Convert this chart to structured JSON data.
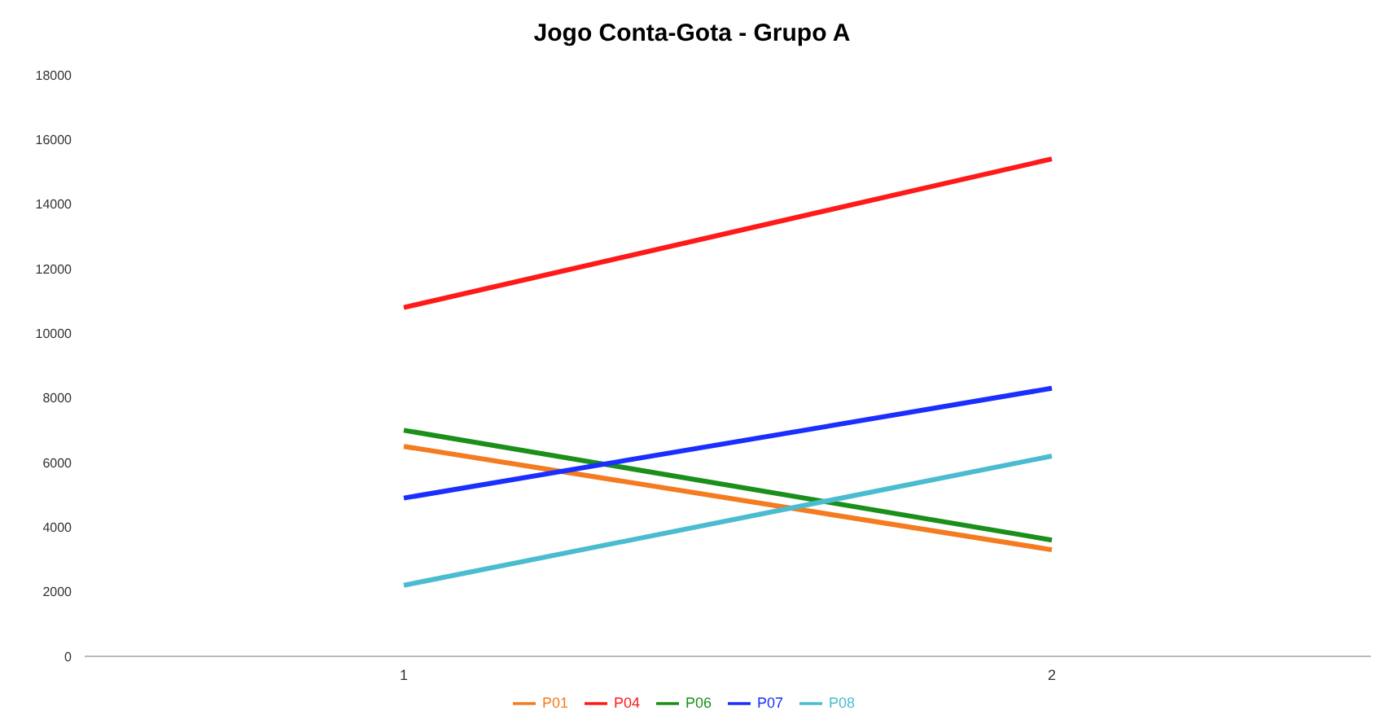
{
  "chart_data": {
    "type": "line",
    "title": "Jogo Conta-Gota - Grupo A",
    "categories": [
      "1",
      "2"
    ],
    "series": [
      {
        "name": "P01",
        "color": "#f47b20",
        "values": [
          6500,
          3300
        ]
      },
      {
        "name": "P04",
        "color": "#ff1a1a",
        "values": [
          10800,
          15400
        ]
      },
      {
        "name": "P06",
        "color": "#1a8f1a",
        "values": [
          7000,
          3600
        ]
      },
      {
        "name": "P07",
        "color": "#1a2eff",
        "values": [
          4900,
          8300
        ]
      },
      {
        "name": "P08",
        "color": "#4bbcd0",
        "values": [
          2200,
          6200
        ]
      }
    ],
    "ylim": [
      0,
      18000
    ],
    "yticks": [
      0,
      2000,
      4000,
      6000,
      8000,
      10000,
      12000,
      14000,
      16000,
      18000
    ],
    "grid": false,
    "legend": "bottom",
    "marker": "none",
    "line_style": "solid"
  }
}
